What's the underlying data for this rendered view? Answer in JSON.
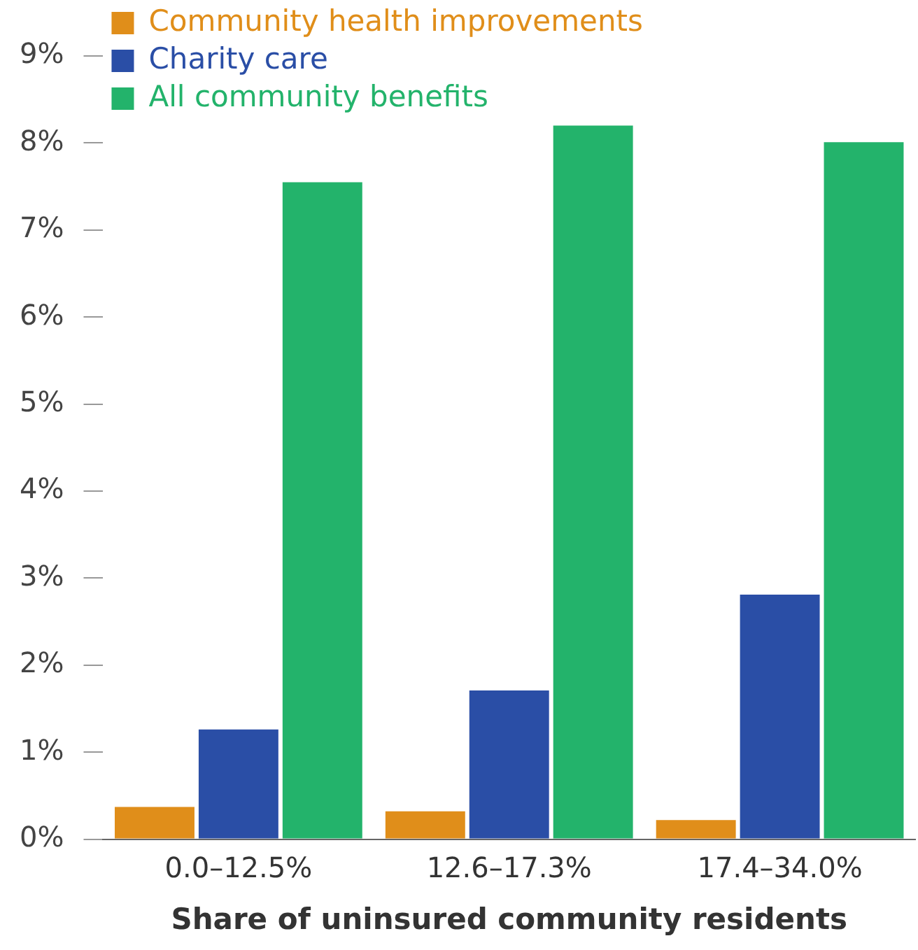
{
  "chart_data": {
    "type": "bar",
    "xlabel": "Share of uninsured community residents",
    "categories": [
      "0.0–12.5%",
      "12.6–17.3%",
      "17.4–34.0%"
    ],
    "series": [
      {
        "name": "Community health improvements",
        "color": "#e08e1a",
        "values": [
          0.37,
          0.32,
          0.22
        ]
      },
      {
        "name": "Charity care",
        "color": "#2a4ea6",
        "values": [
          1.26,
          1.71,
          2.81
        ]
      },
      {
        "name": "All community benefits",
        "color": "#23b36b",
        "values": [
          7.55,
          8.2,
          8.01
        ]
      }
    ],
    "ylim": [
      0,
      9
    ],
    "yticks": [
      {
        "value": 0,
        "label": "0%"
      },
      {
        "value": 1,
        "label": "1%"
      },
      {
        "value": 2,
        "label": "2%"
      },
      {
        "value": 3,
        "label": "3%"
      },
      {
        "value": 4,
        "label": "4%"
      },
      {
        "value": 5,
        "label": "5%"
      },
      {
        "value": 6,
        "label": "6%"
      },
      {
        "value": 7,
        "label": "7%"
      },
      {
        "value": 8,
        "label": "8%"
      },
      {
        "value": 9,
        "label": "9%"
      }
    ],
    "grid": false,
    "legend": "top left"
  }
}
